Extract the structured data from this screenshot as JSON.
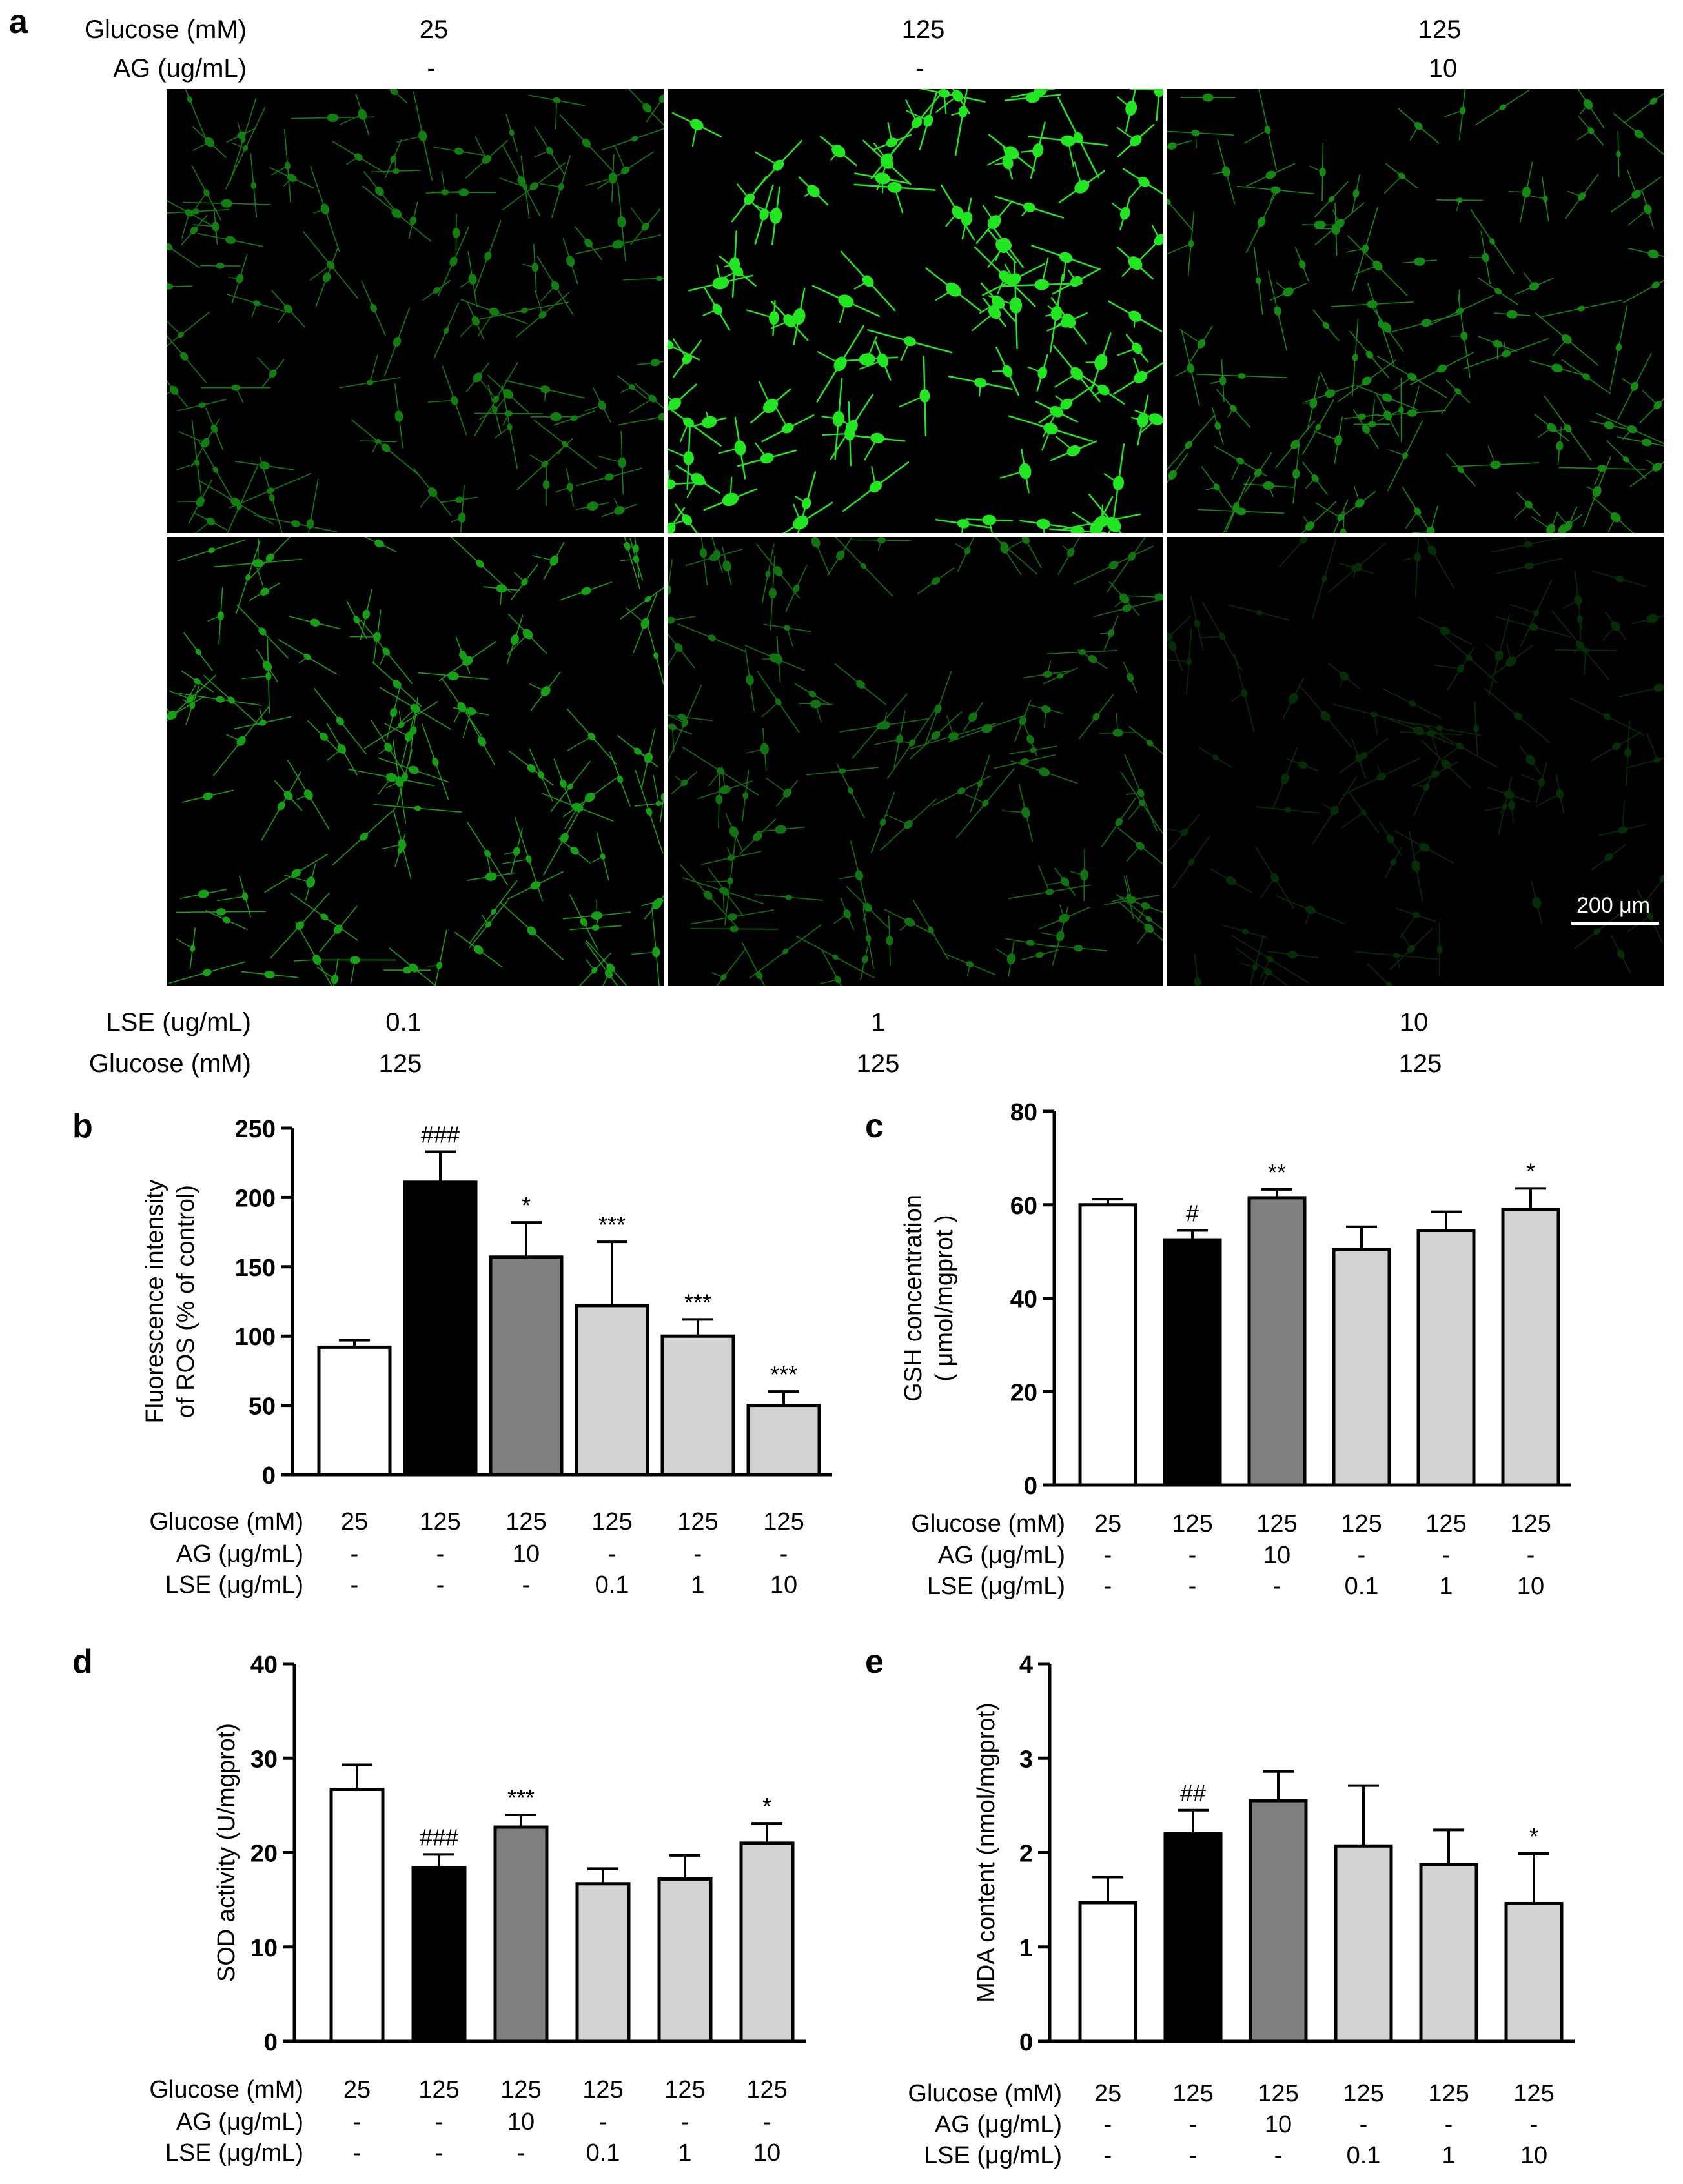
{
  "panel_a": {
    "letter": "a",
    "top_labels": {
      "glucose_label": "Glucose (mM)",
      "ag_label": "AG (ug/mL)",
      "glucose_values": [
        "25",
        "125",
        "125"
      ],
      "ag_values": [
        "-",
        "-",
        "10"
      ]
    },
    "bottom_labels": {
      "lse_label": "LSE (ug/mL)",
      "glucose_label": "Glucose (mM)",
      "lse_values": [
        "0.1",
        "1",
        "10"
      ],
      "glucose_values": [
        "125",
        "125",
        "125"
      ]
    },
    "scale_bar": "200 μm",
    "colors": {
      "cell": "#22e622",
      "background": "#000000",
      "divider": "#ffffff"
    },
    "brightness": [
      0.55,
      1.0,
      0.6,
      0.7,
      0.5,
      0.2
    ]
  },
  "chart_data": [
    {
      "id": "b",
      "letter": "b",
      "type": "bar",
      "ylabel_lines": [
        "Fluorescence intensity",
        "of ROS (% of control)"
      ],
      "ylim": [
        0,
        250
      ],
      "yticks": [
        0,
        50,
        100,
        150,
        200,
        250
      ],
      "values": [
        92,
        211,
        157,
        122,
        100,
        50
      ],
      "errors": [
        5,
        22,
        25,
        46,
        12,
        10
      ],
      "annotations": [
        "",
        "###",
        "*",
        "***",
        "***",
        "***"
      ],
      "fills": [
        "#ffffff",
        "#000000",
        "#808080",
        "#d3d3d3",
        "#d3d3d3",
        "#d3d3d3"
      ],
      "row_labels": [
        "Glucose (mM)",
        "AG (μg/mL)",
        "LSE (μg/mL)"
      ],
      "rows": [
        [
          "25",
          "125",
          "125",
          "125",
          "125",
          "125"
        ],
        [
          "-",
          "-",
          "10",
          "-",
          "-",
          "-"
        ],
        [
          "-",
          "-",
          "-",
          "0.1",
          "1",
          "10"
        ]
      ]
    },
    {
      "id": "c",
      "letter": "c",
      "type": "bar",
      "ylabel_lines": [
        "GSH concentration",
        "( μmol/mgprot )"
      ],
      "ylim": [
        0,
        80
      ],
      "yticks": [
        0,
        20,
        40,
        60,
        80
      ],
      "values": [
        60,
        52.5,
        61.5,
        50.5,
        54.5,
        59
      ],
      "errors": [
        1.2,
        2,
        1.8,
        4.8,
        4,
        4.5
      ],
      "annotations": [
        "",
        "#",
        "**",
        "",
        "",
        "*"
      ],
      "fills": [
        "#ffffff",
        "#000000",
        "#808080",
        "#d3d3d3",
        "#d3d3d3",
        "#d3d3d3"
      ],
      "row_labels": [
        "Glucose (mM)",
        "AG (μg/mL)",
        "LSE (μg/mL)"
      ],
      "rows": [
        [
          "25",
          "125",
          "125",
          "125",
          "125",
          "125"
        ],
        [
          "-",
          "-",
          "10",
          "-",
          "-",
          "-"
        ],
        [
          "-",
          "-",
          "-",
          "0.1",
          "1",
          "10"
        ]
      ]
    },
    {
      "id": "d",
      "letter": "d",
      "type": "bar",
      "ylabel_lines": [
        "SOD activity (U/mgprot)"
      ],
      "ylim": [
        0,
        40
      ],
      "yticks": [
        0,
        10,
        20,
        30,
        40
      ],
      "values": [
        26.7,
        18.4,
        22.7,
        16.7,
        17.2,
        21.0
      ],
      "errors": [
        2.6,
        1.4,
        1.3,
        1.6,
        2.5,
        2.1
      ],
      "annotations": [
        "",
        "###",
        "***",
        "",
        "",
        "*"
      ],
      "fills": [
        "#ffffff",
        "#000000",
        "#808080",
        "#d3d3d3",
        "#d3d3d3",
        "#d3d3d3"
      ],
      "row_labels": [
        "Glucose (mM)",
        "AG (μg/mL)",
        "LSE (μg/mL)"
      ],
      "rows": [
        [
          "25",
          "125",
          "125",
          "125",
          "125",
          "125"
        ],
        [
          "-",
          "-",
          "10",
          "-",
          "-",
          "-"
        ],
        [
          "-",
          "-",
          "-",
          "0.1",
          "1",
          "10"
        ]
      ]
    },
    {
      "id": "e",
      "letter": "e",
      "type": "bar",
      "ylabel_lines": [
        "MDA content (nmol/mgprot)"
      ],
      "ylim": [
        0,
        4
      ],
      "yticks": [
        0,
        1,
        2,
        3,
        4
      ],
      "values": [
        1.47,
        2.2,
        2.55,
        2.07,
        1.87,
        1.46
      ],
      "errors": [
        0.27,
        0.25,
        0.31,
        0.64,
        0.37,
        0.53
      ],
      "annotations": [
        "",
        "##",
        "",
        "",
        "",
        "*"
      ],
      "fills": [
        "#ffffff",
        "#000000",
        "#808080",
        "#d3d3d3",
        "#d3d3d3",
        "#d3d3d3"
      ],
      "row_labels": [
        "Glucose (mM)",
        "AG (μg/mL)",
        "LSE (μg/mL)"
      ],
      "rows": [
        [
          "25",
          "125",
          "125",
          "125",
          "125",
          "125"
        ],
        [
          "-",
          "-",
          "10",
          "-",
          "-",
          "-"
        ],
        [
          "-",
          "-",
          "-",
          "0.1",
          "1",
          "10"
        ]
      ]
    }
  ]
}
